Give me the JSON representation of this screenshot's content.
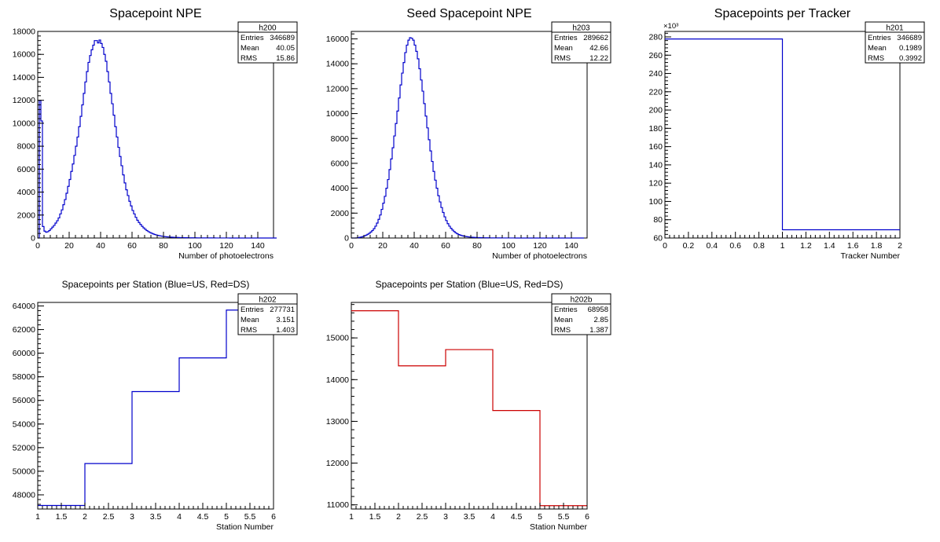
{
  "chart_data": [
    {
      "id": "h200",
      "type": "histogram",
      "title": "Spacepoint NPE",
      "xlabel": "Number of photoelectrons",
      "ylabel": "",
      "xlim": [
        0,
        150
      ],
      "ylim": [
        0,
        18000
      ],
      "xticks": [
        0,
        20,
        40,
        60,
        80,
        100,
        120,
        140
      ],
      "yticks": [
        0,
        2000,
        4000,
        6000,
        8000,
        10000,
        12000,
        14000,
        16000,
        18000
      ],
      "exponent_label": "",
      "color": "#0000cc",
      "stats": {
        "name": "h200",
        "rows": [
          [
            "Entries",
            "346689"
          ],
          [
            "Mean",
            "40.05"
          ],
          [
            "RMS",
            "15.86"
          ]
        ]
      },
      "bin_width": 1,
      "values": [
        0,
        12000,
        10200,
        1000,
        600,
        500,
        550,
        650,
        800,
        950,
        1100,
        1300,
        1500,
        1750,
        2100,
        2450,
        2900,
        3350,
        3900,
        4500,
        5100,
        5800,
        6450,
        7200,
        8000,
        8800,
        9700,
        10600,
        11600,
        12600,
        13600,
        14500,
        15300,
        15900,
        16400,
        16800,
        17200,
        17200,
        17000,
        17250,
        16950,
        16600,
        16000,
        15400,
        14500,
        13600,
        12600,
        11700,
        10700,
        9700,
        8800,
        7900,
        7100,
        6300,
        5500,
        4800,
        4200,
        3700,
        3200,
        2800,
        2400,
        2100,
        1800,
        1550,
        1350,
        1180,
        1020,
        880,
        760,
        650,
        560,
        480,
        420,
        360,
        310,
        270,
        230,
        200,
        175,
        150,
        130,
        115,
        100,
        88,
        78,
        70,
        62,
        55,
        50,
        45,
        40,
        36,
        32,
        29,
        26,
        24,
        22,
        20,
        18,
        16,
        15,
        14,
        13,
        12,
        11,
        10,
        9,
        8,
        8,
        7,
        7,
        6,
        6,
        5,
        5,
        4,
        4,
        4,
        3,
        3,
        3,
        3,
        2,
        2,
        2,
        2,
        2,
        2,
        1,
        1,
        1,
        1,
        1,
        1,
        1,
        1,
        1,
        1,
        0,
        0,
        0,
        0,
        0,
        0,
        0,
        0,
        0,
        0,
        0,
        0,
        0,
        0
      ]
    },
    {
      "id": "h203",
      "type": "histogram",
      "title": "Seed Spacepoint NPE",
      "xlabel": "Number of photoelectrons",
      "ylabel": "",
      "xlim": [
        0,
        150
      ],
      "ylim": [
        0,
        16600
      ],
      "xticks": [
        0,
        20,
        40,
        60,
        80,
        100,
        120,
        140
      ],
      "yticks": [
        0,
        2000,
        4000,
        6000,
        8000,
        10000,
        12000,
        14000,
        16000
      ],
      "exponent_label": "",
      "color": "#0000cc",
      "stats": {
        "name": "h203",
        "rows": [
          [
            "Entries",
            "289662"
          ],
          [
            "Mean",
            "42.66"
          ],
          [
            "RMS",
            "12.22"
          ]
        ]
      },
      "bin_width": 1,
      "values": [
        0,
        0,
        0,
        10,
        30,
        60,
        80,
        120,
        170,
        230,
        300,
        380,
        480,
        600,
        750,
        950,
        1200,
        1500,
        1850,
        2300,
        2800,
        3350,
        4000,
        4700,
        5500,
        6350,
        7250,
        8200,
        9200,
        10200,
        11250,
        12300,
        13250,
        14100,
        14900,
        15500,
        15900,
        16100,
        16050,
        15900,
        15500,
        15000,
        14400,
        13600,
        12700,
        11800,
        10800,
        9800,
        8850,
        7900,
        7000,
        6150,
        5350,
        4650,
        4000,
        3400,
        2900,
        2450,
        2050,
        1700,
        1400,
        1150,
        950,
        780,
        640,
        520,
        420,
        340,
        280,
        230,
        190,
        160,
        130,
        110,
        90,
        75,
        65,
        55,
        47,
        40,
        35,
        30,
        26,
        23,
        20,
        18,
        16,
        14,
        12,
        11,
        10,
        9,
        8,
        7,
        6,
        6,
        5,
        5,
        4,
        4,
        3,
        3,
        3,
        3,
        2,
        2,
        2,
        2,
        2,
        2,
        1,
        1,
        1,
        1,
        1,
        1,
        1,
        1,
        1,
        1,
        0,
        0,
        0,
        0,
        0,
        0,
        0,
        0,
        0,
        0,
        0,
        0,
        0,
        0,
        0,
        0,
        0,
        0,
        0,
        0,
        0,
        0,
        0,
        0,
        0,
        0,
        0,
        0
      ]
    },
    {
      "id": "h201",
      "type": "histogram",
      "title": "Spacepoints per Tracker",
      "xlabel": "Tracker Number",
      "ylabel": "",
      "xlim": [
        0,
        2
      ],
      "ylim": [
        60,
        286
      ],
      "xticks": [
        0,
        0.2,
        0.4,
        0.6,
        0.8,
        1,
        1.2,
        1.4,
        1.6,
        1.8,
        2
      ],
      "yticks": [
        60,
        80,
        100,
        120,
        140,
        160,
        180,
        200,
        220,
        240,
        260,
        280
      ],
      "exponent_label": "×10³",
      "color": "#0000cc",
      "stats": {
        "name": "h201",
        "rows": [
          [
            "Entries",
            "346689"
          ],
          [
            "Mean",
            "0.1989"
          ],
          [
            "RMS",
            "0.3992"
          ]
        ]
      },
      "edges": [
        0,
        1,
        2
      ],
      "values": [
        277.7,
        69.0
      ]
    },
    {
      "id": "h202",
      "type": "histogram",
      "title": "Spacepoints per Station (Blue=US, Red=DS)",
      "xlabel": "Station Number",
      "ylabel": "",
      "xlim": [
        1,
        6
      ],
      "ylim": [
        46800,
        64300
      ],
      "xticks": [
        1,
        1.5,
        2,
        2.5,
        3,
        3.5,
        4,
        4.5,
        5,
        5.5,
        6
      ],
      "yticks": [
        48000,
        50000,
        52000,
        54000,
        56000,
        58000,
        60000,
        62000,
        64000
      ],
      "exponent_label": "",
      "color": "#0000cc",
      "stats": {
        "name": "h202",
        "rows": [
          [
            "Entries",
            "277731"
          ],
          [
            "Mean",
            "3.151"
          ],
          [
            "RMS",
            "1.403"
          ]
        ]
      },
      "edges": [
        1,
        2,
        3,
        4,
        5,
        6
      ],
      "values": [
        47100,
        50650,
        56750,
        59600,
        63650
      ]
    },
    {
      "id": "h202b",
      "type": "histogram",
      "title": "Spacepoints per Station (Blue=US, Red=DS)",
      "xlabel": "Station Number",
      "ylabel": "",
      "xlim": [
        1,
        6
      ],
      "ylim": [
        10900,
        15850
      ],
      "xticks": [
        1,
        1.5,
        2,
        2.5,
        3,
        3.5,
        4,
        4.5,
        5,
        5.5,
        6
      ],
      "yticks": [
        11000,
        12000,
        13000,
        14000,
        15000
      ],
      "exponent_label": "",
      "color": "#cc0000",
      "stats": {
        "name": "h202b",
        "rows": [
          [
            "Entries",
            "68958"
          ],
          [
            "Mean",
            "2.85"
          ],
          [
            "RMS",
            "1.387"
          ]
        ]
      },
      "edges": [
        1,
        2,
        3,
        4,
        5,
        6
      ],
      "values": [
        15650,
        14330,
        14720,
        13260,
        10980
      ]
    }
  ]
}
